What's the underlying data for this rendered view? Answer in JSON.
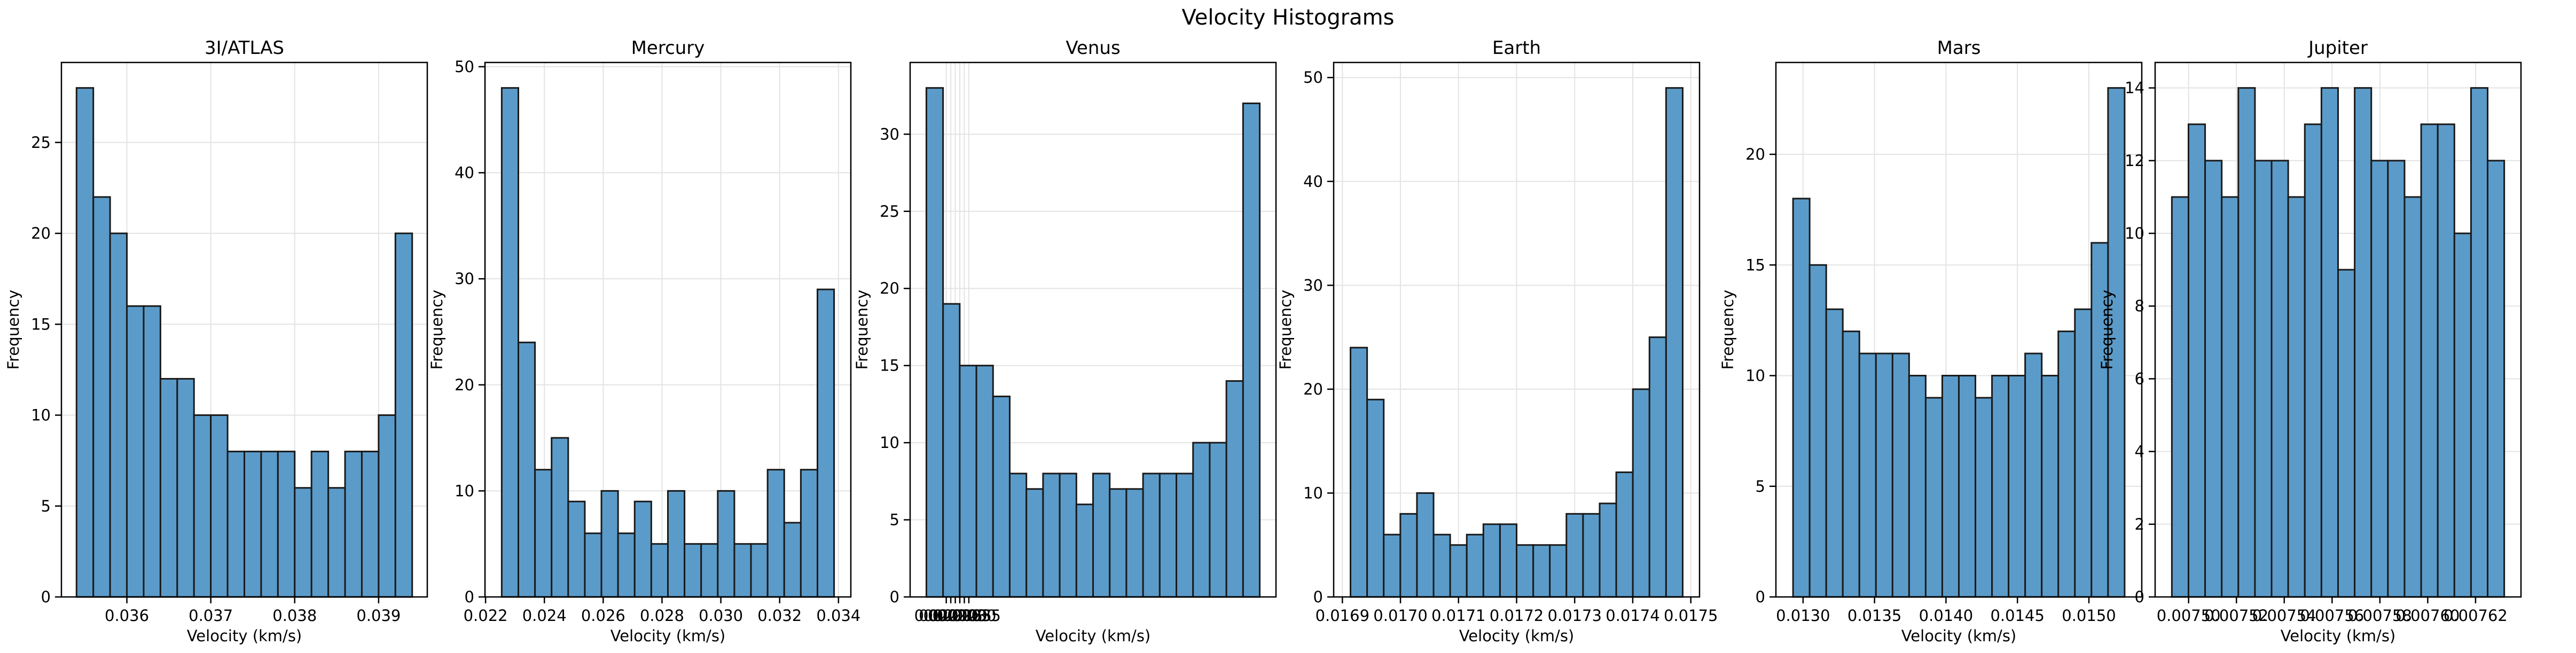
{
  "suptitle": "Velocity Histograms",
  "colors": {
    "bar_fill": "#5b9bc9",
    "bar_edge": "#1a1a1a",
    "grid": "#e3e3e3",
    "axis": "#000000"
  },
  "chart_data": [
    {
      "type": "bar",
      "title": "3I/ATLAS",
      "xlabel": "Velocity (km/s)",
      "ylabel": "Frequency",
      "grid": true,
      "xlim": [
        0.03522,
        0.03958
      ],
      "ylim": [
        0,
        29.4
      ],
      "bin_range": [
        0.0354,
        0.0394
      ],
      "values": [
        28,
        22,
        20,
        16,
        16,
        12,
        12,
        10,
        10,
        8,
        8,
        8,
        8,
        6,
        8,
        6,
        8,
        8,
        10,
        20
      ],
      "xticks": [
        0.036,
        0.037,
        0.038,
        0.039
      ],
      "xtick_labels": [
        "0.036",
        "0.037",
        "0.038",
        "0.039"
      ],
      "yticks": [
        0,
        5,
        10,
        15,
        20,
        25
      ],
      "ytick_labels": [
        "0",
        "5",
        "10",
        "15",
        "20",
        "25"
      ]
    },
    {
      "type": "bar",
      "title": "Mercury",
      "xlabel": "Velocity (km/s)",
      "ylabel": "Frequency",
      "grid": true,
      "xlim": [
        0.02198,
        0.03442
      ],
      "ylim": [
        0,
        50.4
      ],
      "bin_range": [
        0.02255,
        0.03385
      ],
      "values": [
        48,
        24,
        12,
        15,
        9,
        6,
        10,
        6,
        9,
        5,
        10,
        5,
        5,
        10,
        5,
        5,
        12,
        7,
        12,
        29
      ],
      "xticks": [
        0.022,
        0.024,
        0.026,
        0.028,
        0.03,
        0.032,
        0.034
      ],
      "xtick_labels": [
        "0.022",
        "0.024",
        "0.026",
        "0.028",
        "0.030",
        "0.032",
        "0.034"
      ],
      "yticks": [
        0,
        10,
        20,
        30,
        40,
        50
      ],
      "ytick_labels": [
        "0",
        "10",
        "20",
        "30",
        "40",
        "50"
      ]
    },
    {
      "type": "bar",
      "title": "Venus",
      "xlabel": "Velocity (km/s)",
      "ylabel": "Frequency",
      "grid": true,
      "xlim": [
        0.0197,
        0.02375
      ],
      "ylim": [
        0,
        34.65
      ],
      "bin_range": [
        0.01988,
        0.02357
      ],
      "values": [
        33,
        19,
        15,
        15,
        13,
        8,
        7,
        8,
        8,
        6,
        8,
        7,
        7,
        8,
        8,
        8,
        10,
        10,
        14,
        32
      ],
      "xticks": [
        0.0201,
        0.02015,
        0.0202,
        0.02025,
        0.0203,
        0.02035
      ],
      "xtick_labels": [
        "0.02010",
        "0.02015",
        "0.02020",
        "0.02025",
        "0.02030",
        "0.02035"
      ],
      "yticks": [
        0,
        5,
        10,
        15,
        20,
        25,
        30
      ],
      "ytick_labels": [
        "0",
        "5",
        "10",
        "15",
        "20",
        "25",
        "30"
      ]
    },
    {
      "type": "bar",
      "title": "Earth",
      "xlabel": "Velocity (km/s)",
      "ylabel": "Frequency",
      "grid": true,
      "xlim": [
        0.016885,
        0.017515
      ],
      "ylim": [
        0,
        51.45
      ],
      "bin_range": [
        0.016914,
        0.017486
      ],
      "values": [
        24,
        19,
        6,
        8,
        10,
        6,
        5,
        6,
        7,
        7,
        5,
        5,
        5,
        8,
        8,
        9,
        12,
        20,
        25,
        49
      ],
      "xticks": [
        0.0169,
        0.017,
        0.0171,
        0.0172,
        0.0173,
        0.0174,
        0.0175
      ],
      "xtick_labels": [
        "0.0169",
        "0.0170",
        "0.0171",
        "0.0172",
        "0.0173",
        "0.0174",
        "0.0175"
      ],
      "yticks": [
        0,
        10,
        20,
        30,
        40,
        50
      ],
      "ytick_labels": [
        "0",
        "10",
        "20",
        "30",
        "40",
        "50"
      ]
    },
    {
      "type": "bar",
      "title": "Mars",
      "xlabel": "Velocity (km/s)",
      "ylabel": "Frequency",
      "grid": true,
      "xlim": [
        0.01281,
        0.01537
      ],
      "ylim": [
        0,
        24.15
      ],
      "bin_range": [
        0.01293,
        0.01525
      ],
      "values": [
        18,
        15,
        13,
        12,
        11,
        11,
        11,
        10,
        9,
        10,
        10,
        9,
        10,
        10,
        11,
        10,
        12,
        13,
        16,
        23
      ],
      "xticks": [
        0.013,
        0.0135,
        0.014,
        0.0145,
        0.015
      ],
      "xtick_labels": [
        "0.0130",
        "0.0135",
        "0.0140",
        "0.0145",
        "0.0150"
      ],
      "yticks": [
        0,
        5,
        10,
        15,
        20
      ],
      "ytick_labels": [
        "0",
        "5",
        "10",
        "15",
        "20"
      ]
    },
    {
      "type": "bar",
      "title": "Jupiter",
      "xlabel": "Velocity (km/s)",
      "ylabel": "Frequency",
      "grid": true,
      "xlim": [
        0.007486,
        0.007639
      ],
      "ylim": [
        0,
        14.7
      ],
      "bin_range": [
        0.007493,
        0.007632
      ],
      "values": [
        11,
        13,
        12,
        11,
        14,
        12,
        12,
        11,
        13,
        14,
        9,
        14,
        12,
        12,
        11,
        13,
        13,
        10,
        14,
        12
      ],
      "xticks": [
        0.0075,
        0.00752,
        0.00754,
        0.00756,
        0.00758,
        0.0076,
        0.00762
      ],
      "xtick_labels": [
        "0.00750",
        "0.00752",
        "0.00754",
        "0.00756",
        "0.00758",
        "0.00760",
        "0.00762"
      ],
      "yticks": [
        0,
        2,
        4,
        6,
        8,
        10,
        12,
        14
      ],
      "ytick_labels": [
        "0",
        "2",
        "4",
        "6",
        "8",
        "10",
        "12",
        "14"
      ]
    }
  ]
}
